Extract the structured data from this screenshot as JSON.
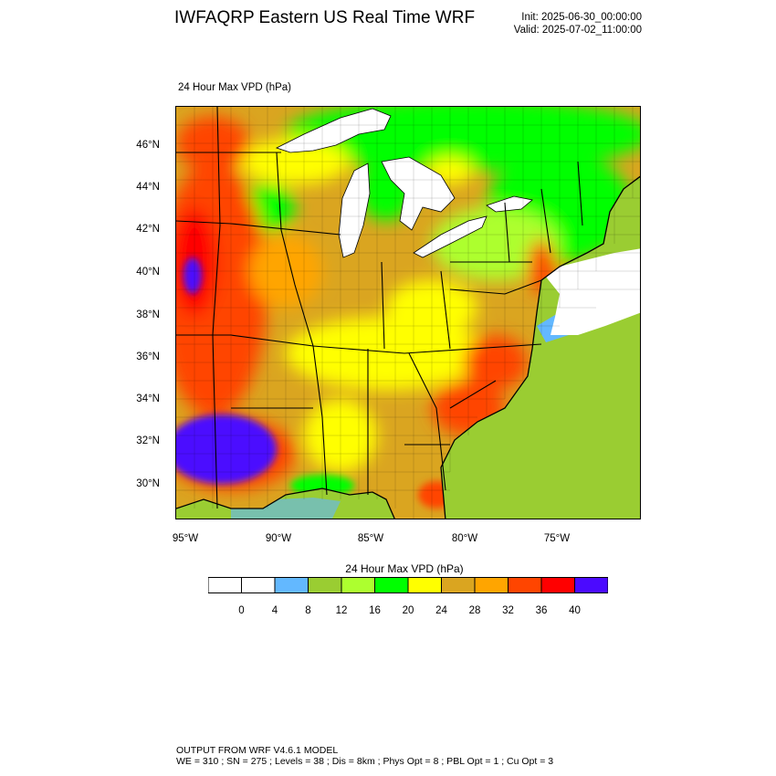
{
  "header": {
    "title": "IWFAQRP Eastern US Real Time WRF",
    "init": "Init: 2025-06-30_00:00:00",
    "valid": "Valid: 2025-07-02_11:00:00"
  },
  "field_label": "24 Hour Max VPD   (hPa)",
  "map": {
    "lat_labels": [
      "46°N",
      "44°N",
      "42°N",
      "40°N",
      "38°N",
      "36°N",
      "34°N",
      "32°N",
      "30°N"
    ],
    "lon_labels": [
      "95°W",
      "90°W",
      "85°W",
      "80°W",
      "75°W"
    ],
    "ocean_color": "#9acd32",
    "lake_color": "#ffffff"
  },
  "colorbar": {
    "title": "24 Hour Max VPD  (hPa)",
    "colors": [
      "#ffffff",
      "#ffffff",
      "#63b8ff",
      "#9acd32",
      "#adff2f",
      "#00ff00",
      "#ffff00",
      "#daa520",
      "#ffa500",
      "#ff4500",
      "#ff0000",
      "#4b0aff"
    ],
    "labels": [
      "0",
      "4",
      "8",
      "12",
      "16",
      "20",
      "24",
      "28",
      "32",
      "36",
      "40"
    ]
  },
  "footer": {
    "line1": "OUTPUT FROM WRF V4.6.1 MODEL",
    "line2": "WE = 310 ; SN = 275 ; Levels = 38 ; Dis = 8km ; Phys Opt = 8 ; PBL Opt = 1 ; Cu Opt = 3"
  }
}
